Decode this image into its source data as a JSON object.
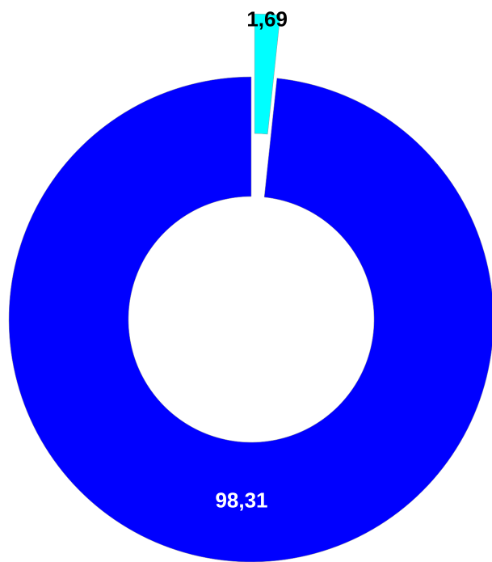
{
  "chart_data": {
    "type": "donut",
    "values": [
      1.69,
      98.31
    ],
    "value_labels": [
      "1,69",
      "98,31"
    ],
    "colors": [
      "#00ffff",
      "#0000ff"
    ]
  }
}
